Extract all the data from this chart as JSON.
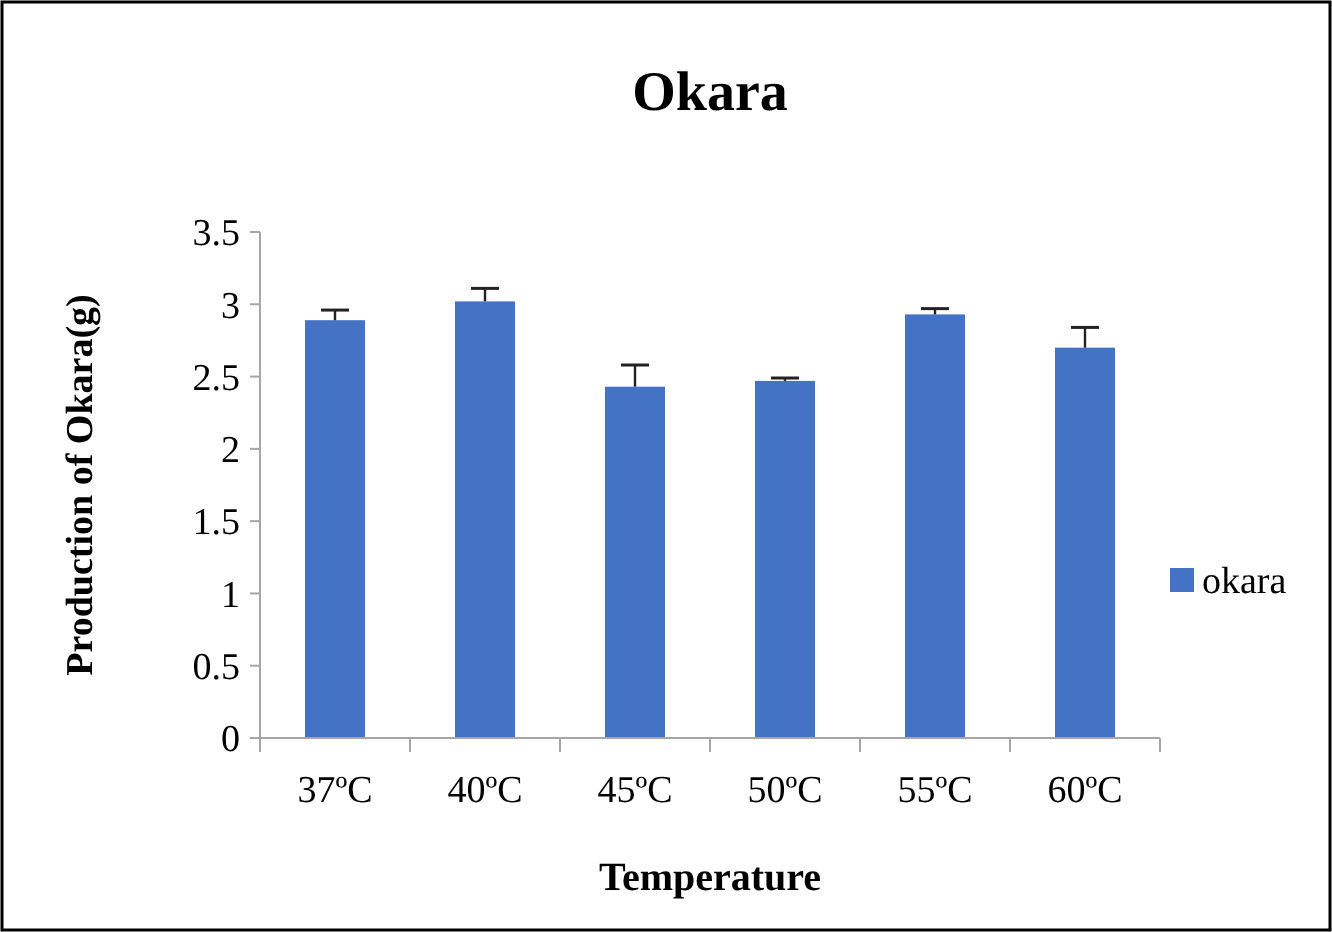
{
  "chart_data": {
    "type": "bar",
    "title": "Okara",
    "xlabel": "Temperature",
    "ylabel": "Production of Okara(g)",
    "categories": [
      "37ºC",
      "40ºC",
      "45ºC",
      "50ºC",
      "55ºC",
      "60ºC"
    ],
    "series": [
      {
        "name": "okara",
        "color": "#4472c4",
        "values": [
          2.89,
          3.02,
          2.43,
          2.47,
          2.93,
          2.7
        ],
        "errors": [
          [
            2.89,
            2.96
          ],
          [
            3.02,
            3.11
          ],
          [
            2.43,
            2.58
          ],
          [
            2.47,
            2.49
          ],
          [
            2.93,
            2.97
          ],
          [
            2.7,
            2.84
          ]
        ]
      }
    ],
    "ylim": [
      0,
      3.5
    ],
    "yticks": [
      0,
      {
        "value": 0.5,
        "label": "0.5"
      },
      1,
      {
        "value": 1.5,
        "label": "1.5"
      },
      2,
      {
        "value": 2.5,
        "label": "2.5"
      },
      3,
      {
        "value": 3.5,
        "label": "3.5"
      }
    ],
    "grid": false,
    "legend": "right"
  }
}
